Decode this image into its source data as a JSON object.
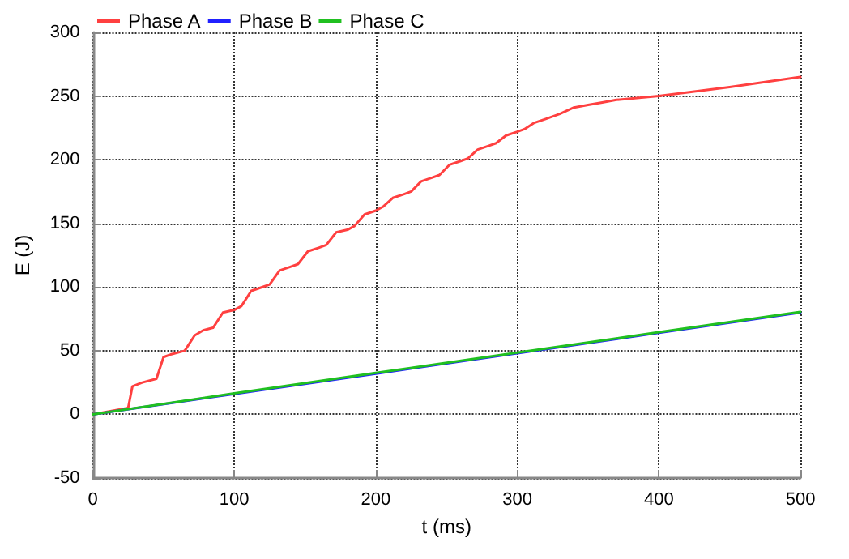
{
  "chart_data": {
    "type": "line",
    "xlabel": "t (ms)",
    "ylabel": "E (J)",
    "xlim": [
      0,
      500
    ],
    "xticks": [
      0,
      100,
      200,
      300,
      400,
      500
    ],
    "ylim": [
      -50,
      300
    ],
    "yticks": [
      -50,
      0,
      50,
      100,
      150,
      200,
      250,
      300
    ],
    "grid": true,
    "legend": "top left",
    "marker": "none",
    "line_style": "solid",
    "series": [
      {
        "name": "Phase A",
        "color": "#ff4040",
        "x": [
          0,
          25,
          28,
          35,
          45,
          50,
          55,
          65,
          72,
          78,
          85,
          92,
          100,
          105,
          112,
          120,
          125,
          132,
          140,
          145,
          152,
          160,
          165,
          172,
          180,
          185,
          192,
          200,
          205,
          212,
          220,
          225,
          232,
          240,
          245,
          252,
          260,
          265,
          272,
          280,
          285,
          292,
          300,
          305,
          312,
          320,
          330,
          340,
          350,
          360,
          370,
          380,
          400,
          450,
          500
        ],
        "values": [
          0,
          5,
          22,
          25,
          28,
          45,
          47,
          50,
          62,
          66,
          68,
          80,
          82,
          85,
          97,
          100,
          102,
          113,
          116,
          118,
          128,
          131,
          133,
          143,
          145,
          148,
          157,
          160,
          163,
          170,
          173,
          175,
          183,
          186,
          188,
          196,
          199,
          201,
          208,
          211,
          213,
          219,
          222,
          224,
          229,
          232,
          236,
          241,
          243,
          245,
          247,
          248,
          250,
          257,
          265
        ]
      },
      {
        "name": "Phase B",
        "color": "#2020ff",
        "x": [
          0,
          100,
          200,
          300,
          400,
          500
        ],
        "values": [
          0,
          16,
          32,
          48,
          64,
          80
        ]
      },
      {
        "name": "Phase C",
        "color": "#20c020",
        "x": [
          0,
          100,
          200,
          300,
          400,
          500
        ],
        "values": [
          0,
          16.5,
          32.5,
          48.5,
          64.5,
          80.5
        ]
      }
    ]
  }
}
